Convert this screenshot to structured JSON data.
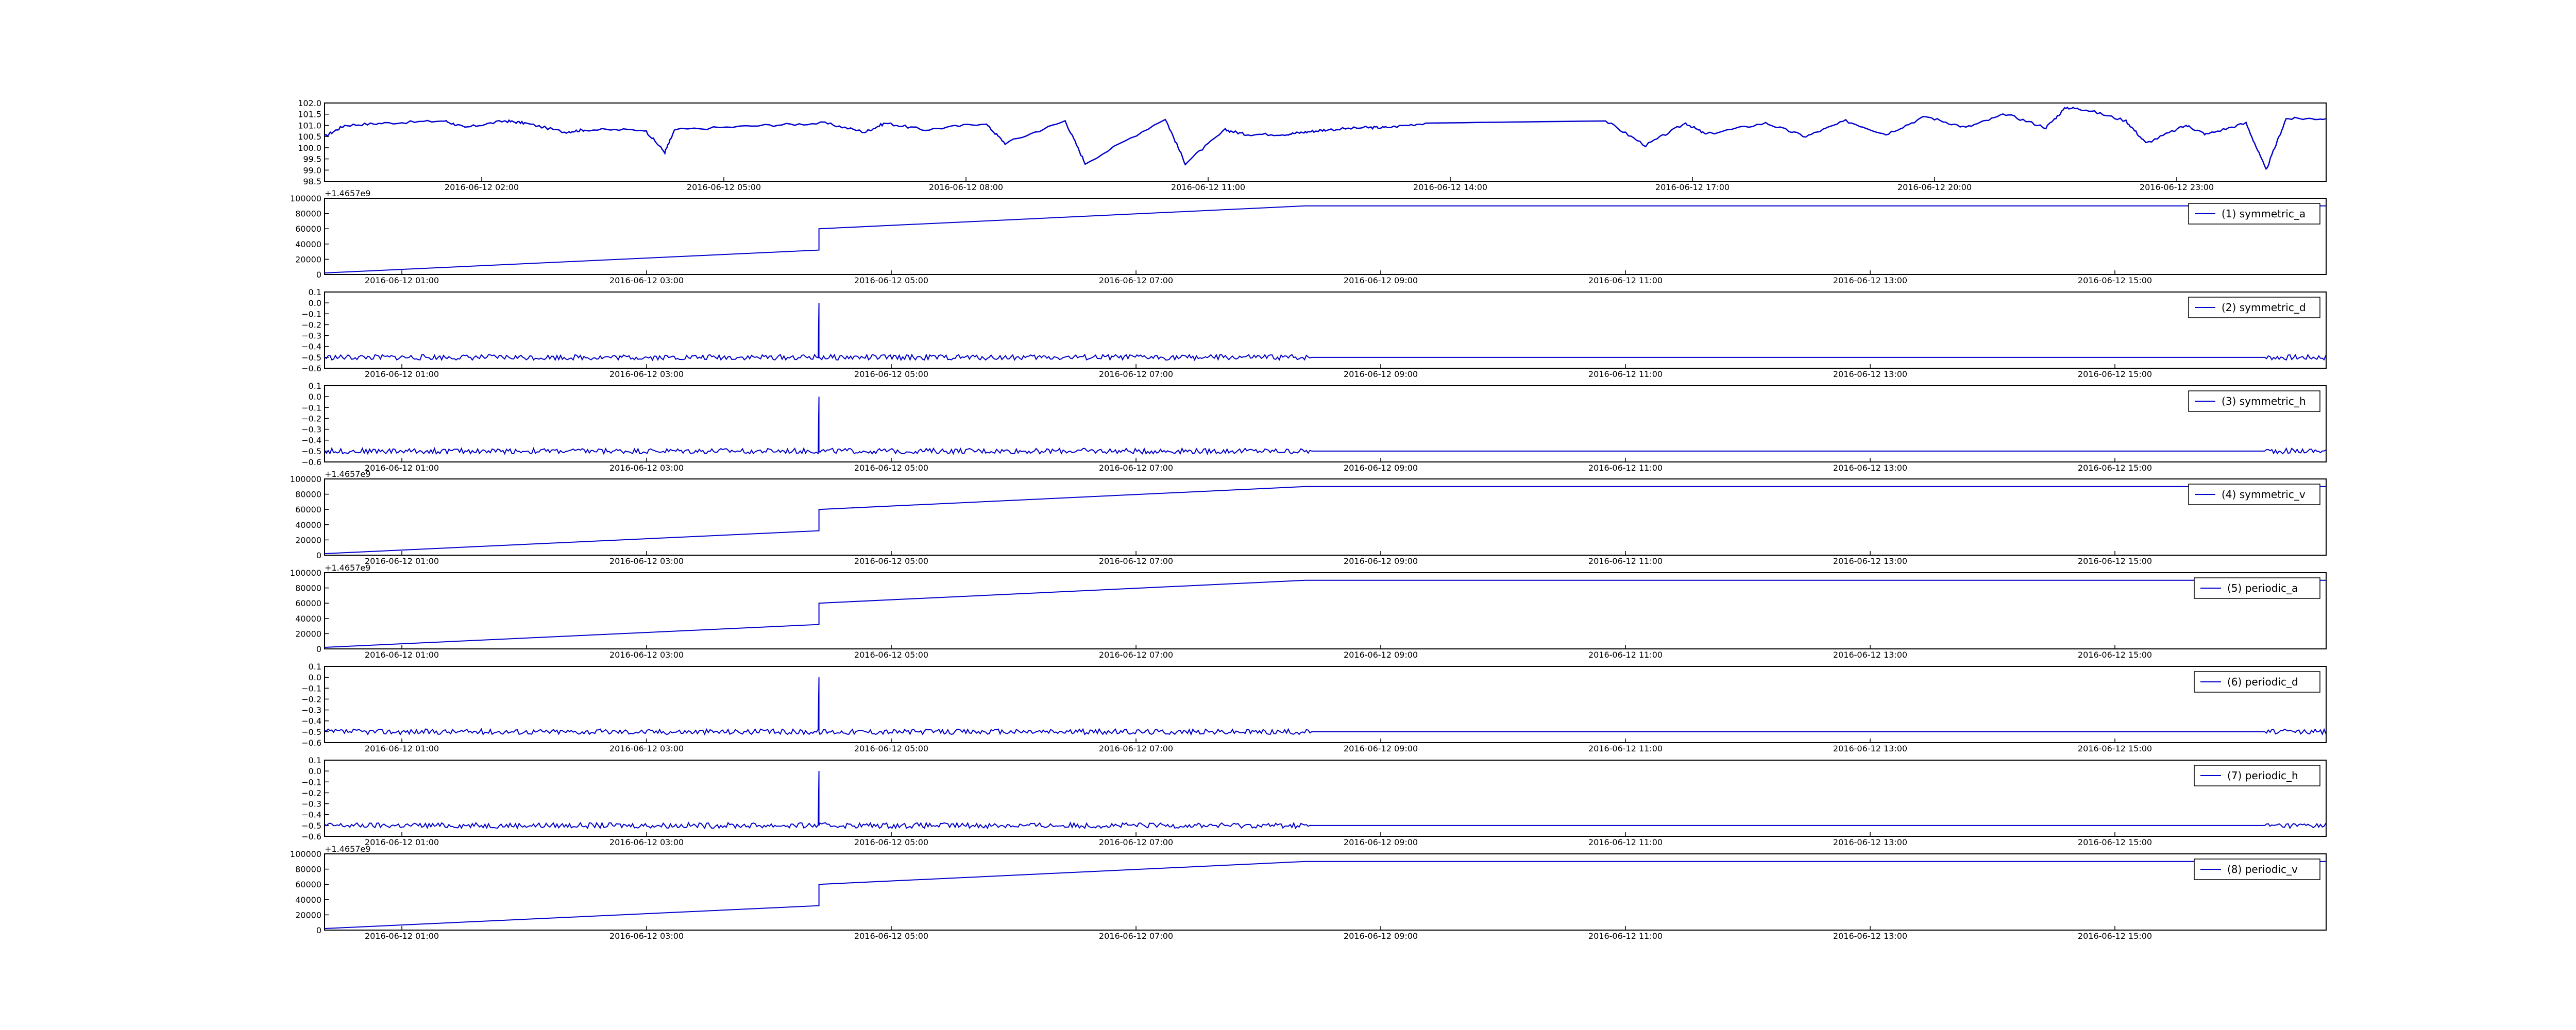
{
  "figure": {
    "line_color": "#0000cc",
    "offset_label": "+1.4657e9",
    "time_ticks": [
      "2016-06-12 01:00",
      "2016-06-12 03:00",
      "2016-06-12 05:00",
      "2016-06-12 07:00",
      "2016-06-12 09:00",
      "2016-06-12 11:00",
      "2016-06-12 13:00",
      "2016-06-12 15:00"
    ]
  },
  "chart_data": [
    {
      "type": "line",
      "x_ticks": [
        "2016-06-12 02:00",
        "2016-06-12 05:00",
        "2016-06-12 08:00",
        "2016-06-12 11:00",
        "2016-06-12 14:00",
        "2016-06-12 17:00",
        "2016-06-12 20:00",
        "2016-06-12 23:00"
      ],
      "ylim": [
        98.5,
        102.0
      ],
      "y_ticks": [
        "102.0",
        "101.5",
        "101.0",
        "100.5",
        "100.0",
        "99.5",
        "99.0",
        "98.5"
      ],
      "baseline": 101.0,
      "legend": "",
      "x": [
        0.0,
        0.01,
        0.03,
        0.06,
        0.07,
        0.09,
        0.1,
        0.12,
        0.13,
        0.16,
        0.17,
        0.175,
        0.22,
        0.25,
        0.27,
        0.28,
        0.3,
        0.33,
        0.34,
        0.37,
        0.38,
        0.42,
        0.43,
        0.45,
        0.46,
        0.48,
        0.49,
        0.5,
        0.52,
        0.53,
        0.55,
        0.64,
        0.66,
        0.68,
        0.69,
        0.72,
        0.74,
        0.76,
        0.78,
        0.8,
        0.82,
        0.84,
        0.86,
        0.87,
        0.88,
        0.9,
        0.91,
        0.93,
        0.94,
        0.96,
        0.97,
        0.98,
        1.0
      ],
      "values": [
        100.5,
        101.0,
        101.1,
        101.2,
        100.9,
        101.2,
        101.1,
        100.7,
        100.8,
        100.8,
        99.8,
        100.8,
        101.0,
        101.1,
        100.7,
        101.1,
        100.8,
        101.1,
        100.2,
        101.2,
        99.3,
        101.3,
        99.3,
        100.8,
        100.6,
        100.6,
        100.7,
        100.8,
        100.9,
        100.9,
        101.1,
        101.2,
        100.1,
        101.1,
        100.6,
        101.1,
        100.5,
        101.2,
        100.6,
        101.4,
        100.9,
        101.5,
        100.9,
        101.8,
        101.7,
        101.2,
        100.2,
        101.0,
        100.6,
        101.1,
        99.0,
        101.3,
        101.3
      ]
    },
    {
      "type": "line",
      "legend": "(1) symmetric_a",
      "y_ticks": [
        "100000",
        "80000",
        "60000",
        "40000",
        "20000",
        "0"
      ],
      "ylim": [
        0,
        100000
      ],
      "x": [
        0.0,
        0.247,
        0.247,
        0.49,
        1.0
      ],
      "values": [
        2000,
        32000,
        60000,
        90000,
        90000
      ]
    },
    {
      "type": "line",
      "legend": "(2) symmetric_d",
      "y_ticks": [
        "0.1",
        "0.0",
        "−0.1",
        "−0.2",
        "−0.3",
        "−0.4",
        "−0.5",
        "−0.6"
      ],
      "ylim": [
        -0.6,
        0.1
      ],
      "baseline": -0.5,
      "spike_x": 0.247,
      "spike_value": 0.0,
      "noise_segments": [
        [
          0.0,
          0.493
        ],
        [
          0.97,
          1.0
        ]
      ]
    },
    {
      "type": "line",
      "legend": "(3) symmetric_h",
      "y_ticks": [
        "0.1",
        "0.0",
        "−0.1",
        "−0.2",
        "−0.3",
        "−0.4",
        "−0.5",
        "−0.6"
      ],
      "ylim": [
        -0.6,
        0.1
      ],
      "baseline": -0.5,
      "spike_x": 0.247,
      "spike_value": 0.0,
      "noise_segments": [
        [
          0.0,
          0.493
        ],
        [
          0.97,
          1.0
        ]
      ]
    },
    {
      "type": "line",
      "legend": "(4) symmetric_v",
      "y_ticks": [
        "100000",
        "80000",
        "60000",
        "40000",
        "20000",
        "0"
      ],
      "ylim": [
        0,
        100000
      ],
      "x": [
        0.0,
        0.247,
        0.247,
        0.49,
        1.0
      ],
      "values": [
        2000,
        32000,
        60000,
        90000,
        90000
      ]
    },
    {
      "type": "line",
      "legend": "(5) periodic_a",
      "y_ticks": [
        "100000",
        "80000",
        "60000",
        "40000",
        "20000",
        "0"
      ],
      "ylim": [
        0,
        100000
      ],
      "x": [
        0.0,
        0.247,
        0.247,
        0.49,
        1.0
      ],
      "values": [
        2000,
        32000,
        60000,
        90000,
        90000
      ]
    },
    {
      "type": "line",
      "legend": "(6) periodic_d",
      "y_ticks": [
        "0.1",
        "0.0",
        "−0.1",
        "−0.2",
        "−0.3",
        "−0.4",
        "−0.5",
        "−0.6"
      ],
      "ylim": [
        -0.6,
        0.1
      ],
      "baseline": -0.5,
      "spike_x": 0.247,
      "spike_value": 0.0,
      "noise_segments": [
        [
          0.0,
          0.493
        ],
        [
          0.97,
          1.0
        ]
      ]
    },
    {
      "type": "line",
      "legend": "(7) periodic_h",
      "y_ticks": [
        "0.1",
        "0.0",
        "−0.1",
        "−0.2",
        "−0.3",
        "−0.4",
        "−0.5",
        "−0.6"
      ],
      "ylim": [
        -0.6,
        0.1
      ],
      "baseline": -0.5,
      "spike_x": 0.247,
      "spike_value": 0.0,
      "noise_segments": [
        [
          0.0,
          0.493
        ],
        [
          0.97,
          1.0
        ]
      ]
    },
    {
      "type": "line",
      "legend": "(8) periodic_v",
      "y_ticks": [
        "100000",
        "80000",
        "60000",
        "40000",
        "20000",
        "0"
      ],
      "ylim": [
        0,
        100000
      ],
      "x": [
        0.0,
        0.247,
        0.247,
        0.49,
        1.0
      ],
      "values": [
        2000,
        32000,
        60000,
        90000,
        90000
      ]
    }
  ]
}
